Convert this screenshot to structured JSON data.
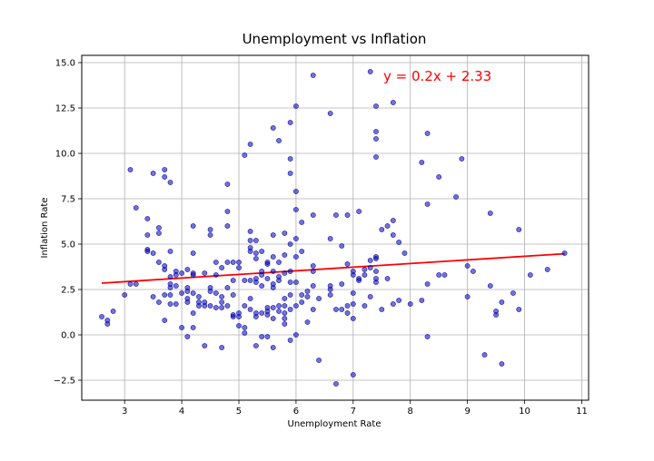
{
  "chart_data": {
    "type": "scatter",
    "title": "Unemployment vs Inflation",
    "xlabel": "Unemployment Rate",
    "ylabel": "Inflation Rate",
    "xlim": [
      2.25,
      11.12
    ],
    "ylim": [
      -3.6,
      15.4
    ],
    "xticks": [
      3,
      4,
      5,
      6,
      7,
      8,
      9,
      10,
      11
    ],
    "yticks": [
      -2.5,
      0.0,
      2.5,
      5.0,
      7.5,
      10.0,
      12.5,
      15.0
    ],
    "xtick_labels": [
      "3",
      "4",
      "5",
      "6",
      "7",
      "8",
      "9",
      "10",
      "11"
    ],
    "ytick_labels": [
      "−2.5",
      "0.0",
      "2.5",
      "5.0",
      "7.5",
      "10.0",
      "12.5",
      "15.0"
    ],
    "grid": true,
    "annotation": "y = 0.2x + 2.33",
    "colors": {
      "points": "#0000b0",
      "trend": "#ff0000",
      "annotation": "#ff0000",
      "grid": "#b0b0b0"
    },
    "trend_line": {
      "slope": 0.2,
      "intercept": 2.33,
      "x": [
        2.6,
        10.7
      ]
    },
    "points": [
      [
        2.6,
        1.0
      ],
      [
        2.7,
        0.8
      ],
      [
        2.7,
        0.6
      ],
      [
        2.8,
        1.3
      ],
      [
        3.0,
        2.2
      ],
      [
        3.1,
        9.1
      ],
      [
        3.1,
        2.8
      ],
      [
        3.2,
        7.0
      ],
      [
        3.2,
        2.8
      ],
      [
        3.4,
        6.4
      ],
      [
        3.4,
        5.5
      ],
      [
        3.4,
        4.7
      ],
      [
        3.4,
        4.6
      ],
      [
        3.5,
        8.9
      ],
      [
        3.5,
        4.5
      ],
      [
        3.5,
        2.1
      ],
      [
        3.6,
        5.9
      ],
      [
        3.6,
        5.6
      ],
      [
        3.6,
        4.0
      ],
      [
        3.6,
        1.8
      ],
      [
        3.7,
        9.1
      ],
      [
        3.7,
        8.7
      ],
      [
        3.7,
        3.8
      ],
      [
        3.7,
        3.6
      ],
      [
        3.7,
        2.2
      ],
      [
        3.7,
        0.8
      ],
      [
        3.8,
        8.4
      ],
      [
        3.8,
        4.6
      ],
      [
        3.8,
        3.2
      ],
      [
        3.8,
        2.8
      ],
      [
        3.8,
        2.6
      ],
      [
        3.8,
        2.2
      ],
      [
        3.8,
        1.7
      ],
      [
        3.9,
        3.5
      ],
      [
        3.9,
        3.3
      ],
      [
        3.9,
        2.7
      ],
      [
        3.9,
        1.7
      ],
      [
        4.0,
        3.4
      ],
      [
        4.0,
        2.3
      ],
      [
        4.0,
        0.4
      ],
      [
        4.1,
        3.6
      ],
      [
        4.1,
        2.6
      ],
      [
        4.1,
        2.4
      ],
      [
        4.1,
        2.0
      ],
      [
        4.1,
        1.8
      ],
      [
        4.1,
        -0.1
      ],
      [
        4.2,
        6.0
      ],
      [
        4.2,
        4.5
      ],
      [
        4.2,
        3.4
      ],
      [
        4.2,
        3.3
      ],
      [
        4.2,
        2.3
      ],
      [
        4.2,
        1.2
      ],
      [
        4.2,
        0.4
      ],
      [
        4.3,
        2.1
      ],
      [
        4.3,
        1.8
      ],
      [
        4.3,
        1.6
      ],
      [
        4.4,
        3.4
      ],
      [
        4.4,
        1.8
      ],
      [
        4.4,
        1.6
      ],
      [
        4.4,
        -0.6
      ],
      [
        4.5,
        5.8
      ],
      [
        4.5,
        5.5
      ],
      [
        4.5,
        2.6
      ],
      [
        4.5,
        2.4
      ],
      [
        4.5,
        1.6
      ],
      [
        4.6,
        4.0
      ],
      [
        4.6,
        3.3
      ],
      [
        4.6,
        2.3
      ],
      [
        4.6,
        1.5
      ],
      [
        4.7,
        3.7
      ],
      [
        4.7,
        2.1
      ],
      [
        4.7,
        1.8
      ],
      [
        4.7,
        1.5
      ],
      [
        4.7,
        -0.7
      ],
      [
        4.8,
        8.3
      ],
      [
        4.8,
        6.8
      ],
      [
        4.8,
        6.0
      ],
      [
        4.8,
        4.0
      ],
      [
        4.8,
        2.6
      ],
      [
        4.8,
        1.6
      ],
      [
        4.9,
        4.0
      ],
      [
        4.9,
        3.0
      ],
      [
        4.9,
        2.2
      ],
      [
        4.9,
        1.1
      ],
      [
        4.9,
        1.0
      ],
      [
        5.0,
        4.0
      ],
      [
        5.0,
        3.7
      ],
      [
        5.0,
        1.2
      ],
      [
        5.0,
        1.0
      ],
      [
        5.0,
        0.5
      ],
      [
        5.1,
        9.9
      ],
      [
        5.1,
        3.0
      ],
      [
        5.1,
        1.6
      ],
      [
        5.1,
        0.4
      ],
      [
        5.1,
        0.1
      ],
      [
        5.2,
        10.5
      ],
      [
        5.2,
        5.7
      ],
      [
        5.2,
        5.2
      ],
      [
        5.2,
        4.8
      ],
      [
        5.2,
        4.6
      ],
      [
        5.2,
        3.0
      ],
      [
        5.2,
        2.0
      ],
      [
        5.2,
        1.4
      ],
      [
        5.3,
        5.2
      ],
      [
        5.3,
        4.5
      ],
      [
        5.3,
        4.2
      ],
      [
        5.3,
        3.1
      ],
      [
        5.3,
        2.9
      ],
      [
        5.3,
        1.2
      ],
      [
        5.3,
        1.0
      ],
      [
        5.3,
        -0.6
      ],
      [
        5.4,
        4.6
      ],
      [
        5.4,
        3.5
      ],
      [
        5.4,
        3.3
      ],
      [
        5.4,
        2.7
      ],
      [
        5.4,
        1.2
      ],
      [
        5.4,
        -0.1
      ],
      [
        5.5,
        4.0
      ],
      [
        5.5,
        3.9
      ],
      [
        5.5,
        3.1
      ],
      [
        5.5,
        1.5
      ],
      [
        5.5,
        1.3
      ],
      [
        5.5,
        1.1
      ],
      [
        5.5,
        -0.1
      ],
      [
        5.6,
        11.4
      ],
      [
        5.6,
        5.5
      ],
      [
        5.6,
        4.3
      ],
      [
        5.6,
        3.5
      ],
      [
        5.6,
        2.8
      ],
      [
        5.6,
        2.6
      ],
      [
        5.6,
        1.5
      ],
      [
        5.6,
        0.9
      ],
      [
        5.6,
        -0.7
      ],
      [
        5.7,
        10.7
      ],
      [
        5.7,
        4.0
      ],
      [
        5.7,
        3.2
      ],
      [
        5.7,
        3.0
      ],
      [
        5.7,
        1.6
      ],
      [
        5.7,
        1.3
      ],
      [
        5.8,
        5.6
      ],
      [
        5.8,
        4.4
      ],
      [
        5.8,
        3.4
      ],
      [
        5.8,
        2.0
      ],
      [
        5.8,
        1.6
      ],
      [
        5.8,
        1.2
      ],
      [
        5.8,
        0.9
      ],
      [
        5.8,
        0.6
      ],
      [
        5.9,
        11.7
      ],
      [
        5.9,
        9.7
      ],
      [
        5.9,
        8.9
      ],
      [
        5.9,
        5.0
      ],
      [
        5.9,
        3.5
      ],
      [
        5.9,
        2.9
      ],
      [
        5.9,
        2.2
      ],
      [
        5.9,
        1.4
      ],
      [
        5.9,
        -0.3
      ],
      [
        6.0,
        12.6
      ],
      [
        6.0,
        7.9
      ],
      [
        6.0,
        6.9
      ],
      [
        6.0,
        5.3
      ],
      [
        6.0,
        4.3
      ],
      [
        6.0,
        2.9
      ],
      [
        6.0,
        1.6
      ],
      [
        6.0,
        0.0
      ],
      [
        6.1,
        6.2
      ],
      [
        6.1,
        4.6
      ],
      [
        6.1,
        2.2
      ],
      [
        6.1,
        1.8
      ],
      [
        6.2,
        2.4
      ],
      [
        6.2,
        2.1
      ],
      [
        6.2,
        0.7
      ],
      [
        6.3,
        14.3
      ],
      [
        6.3,
        6.6
      ],
      [
        6.3,
        3.8
      ],
      [
        6.3,
        3.5
      ],
      [
        6.3,
        2.7
      ],
      [
        6.3,
        1.4
      ],
      [
        6.4,
        2.0
      ],
      [
        6.4,
        -1.4
      ],
      [
        6.6,
        12.2
      ],
      [
        6.6,
        5.3
      ],
      [
        6.6,
        2.7
      ],
      [
        6.6,
        2.5
      ],
      [
        6.6,
        2.2
      ],
      [
        6.7,
        6.6
      ],
      [
        6.7,
        1.4
      ],
      [
        6.7,
        -2.7
      ],
      [
        6.8,
        4.9
      ],
      [
        6.8,
        2.8
      ],
      [
        6.8,
        1.4
      ],
      [
        6.9,
        6.6
      ],
      [
        6.9,
        3.9
      ],
      [
        6.9,
        1.6
      ],
      [
        6.9,
        1.2
      ],
      [
        7.0,
        3.5
      ],
      [
        7.0,
        3.3
      ],
      [
        7.0,
        2.3
      ],
      [
        7.0,
        1.7
      ],
      [
        7.0,
        0.9
      ],
      [
        7.0,
        -2.2
      ],
      [
        7.1,
        6.8
      ],
      [
        7.1,
        3.1
      ],
      [
        7.1,
        3.0
      ],
      [
        7.2,
        3.6
      ],
      [
        7.2,
        3.3
      ],
      [
        7.2,
        1.6
      ],
      [
        7.3,
        14.5
      ],
      [
        7.3,
        4.1
      ],
      [
        7.3,
        3.7
      ],
      [
        7.3,
        2.1
      ],
      [
        7.4,
        12.6
      ],
      [
        7.4,
        11.2
      ],
      [
        7.4,
        10.8
      ],
      [
        7.4,
        9.8
      ],
      [
        7.4,
        4.3
      ],
      [
        7.4,
        4.2
      ],
      [
        7.4,
        3.5
      ],
      [
        7.4,
        3.1
      ],
      [
        7.4,
        2.9
      ],
      [
        7.5,
        5.8
      ],
      [
        7.5,
        1.4
      ],
      [
        7.6,
        6.0
      ],
      [
        7.6,
        3.1
      ],
      [
        7.7,
        12.8
      ],
      [
        7.7,
        6.3
      ],
      [
        7.7,
        5.5
      ],
      [
        7.7,
        1.7
      ],
      [
        7.8,
        5.1
      ],
      [
        7.8,
        1.9
      ],
      [
        7.9,
        4.5
      ],
      [
        8.0,
        1.7
      ],
      [
        8.2,
        9.5
      ],
      [
        8.2,
        1.9
      ],
      [
        8.3,
        11.1
      ],
      [
        8.3,
        7.2
      ],
      [
        8.3,
        2.8
      ],
      [
        8.3,
        -0.1
      ],
      [
        8.5,
        8.7
      ],
      [
        8.5,
        3.3
      ],
      [
        8.6,
        3.3
      ],
      [
        8.8,
        7.6
      ],
      [
        8.9,
        9.7
      ],
      [
        9.0,
        3.8
      ],
      [
        9.0,
        2.1
      ],
      [
        9.1,
        3.5
      ],
      [
        9.3,
        -1.1
      ],
      [
        9.4,
        6.7
      ],
      [
        9.4,
        2.7
      ],
      [
        9.5,
        1.3
      ],
      [
        9.5,
        1.1
      ],
      [
        9.6,
        1.8
      ],
      [
        9.6,
        -1.6
      ],
      [
        9.8,
        2.3
      ],
      [
        9.9,
        5.8
      ],
      [
        9.9,
        1.4
      ],
      [
        10.1,
        3.3
      ],
      [
        10.4,
        3.6
      ],
      [
        10.7,
        4.5
      ]
    ]
  }
}
